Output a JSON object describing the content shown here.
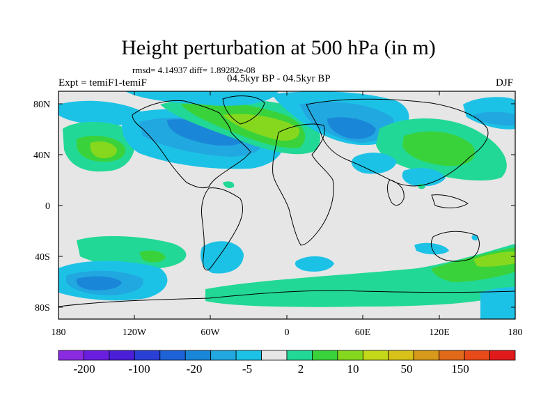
{
  "title": "Height perturbation at 500 hPa (in m)",
  "stats": "rmsd= 4.14937 diff= 1.89282e-08",
  "expt": "Expt = temiF1-temiF",
  "period": "04.5kyr BP - 04.5kyr BP",
  "season": "DJF",
  "lat_labels": [
    "80N",
    "40N",
    "0",
    "40S",
    "80S"
  ],
  "lon_labels": [
    "180",
    "120W",
    "60W",
    "0",
    "60E",
    "120E",
    "180"
  ],
  "colorbar": {
    "colors": [
      "#8a2be2",
      "#6a1fe0",
      "#4b1fd8",
      "#2a3fd6",
      "#1e62d8",
      "#1a86d8",
      "#22a8e0",
      "#1cc2e6",
      "#e6e6e6",
      "#22d896",
      "#3ad23a",
      "#86d81e",
      "#c4d81a",
      "#d8c21a",
      "#d89a1a",
      "#e06a1a",
      "#e84a1a",
      "#e01a1a"
    ],
    "labels": [
      "-200",
      "-100",
      "-20",
      "-5",
      "2",
      "10",
      "50",
      "150"
    ]
  }
}
